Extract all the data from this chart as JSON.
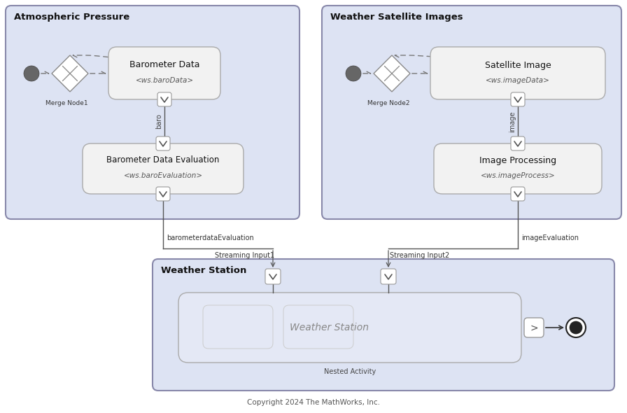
{
  "fig_width": 8.96,
  "fig_height": 5.9,
  "bg_color": "#ffffff",
  "panel_bg": "#dde3f3",
  "box_bg": "#f2f2f2",
  "box_edge": "#aaaaaa",
  "panel_edge": "#8888aa",
  "copyright": "Copyright 2024 The MathWorks, Inc.",
  "panel1_title": "Atmospheric Pressure",
  "panel2_title": "Weather Satellite Images",
  "panel3_title": "Weather Station"
}
